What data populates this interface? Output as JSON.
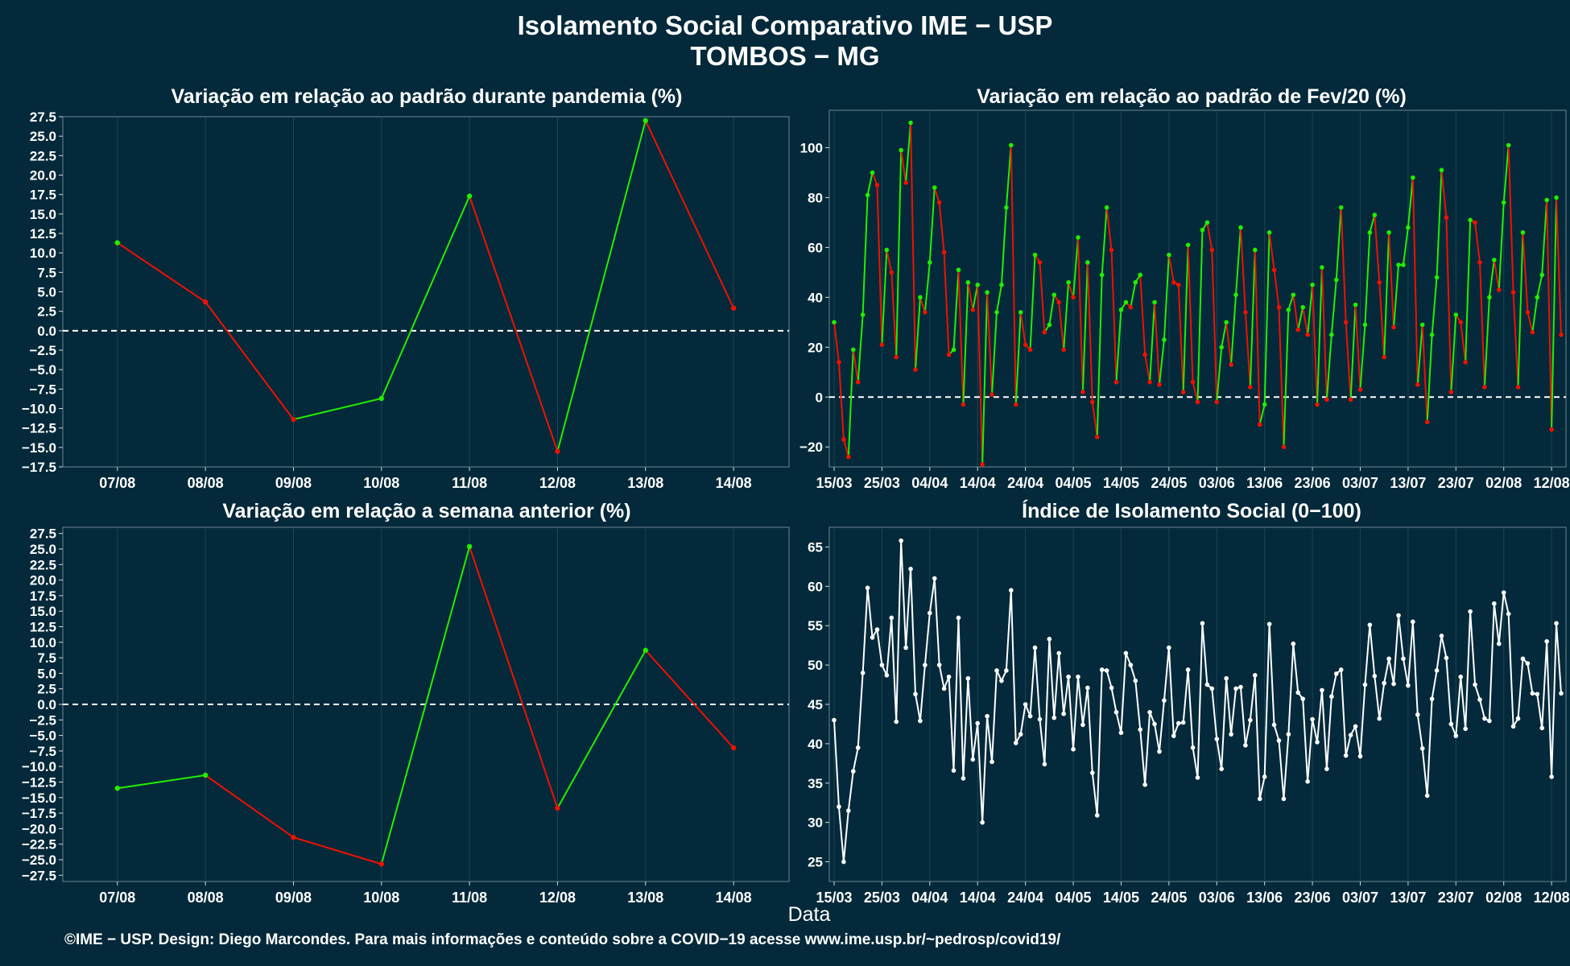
{
  "title_line1": "Isolamento Social Comparativo IME − USP",
  "title_line2": "TOMBOS − MG",
  "xlabel": "Data",
  "footer": "©IME − USP. Design: Diego Marcondes. Para mais informações e conteúdo sobre a COVID−19 acesse www.ime.usp.br/~pedrosp/covid19/",
  "colors": {
    "background": "#04293a",
    "increase": "#22ee00",
    "decrease": "#ee1100",
    "index_line": "#ffffff",
    "grid": "#1d4553",
    "text": "#ffffff"
  },
  "chart_data": [
    {
      "id": "pandemia",
      "type": "line",
      "title": "Variação em relação ao padrão durante pandemia (%)",
      "categories": [
        "07/08",
        "08/08",
        "09/08",
        "10/08",
        "11/08",
        "12/08",
        "13/08",
        "14/08"
      ],
      "values": [
        11.3,
        3.7,
        -11.4,
        -8.7,
        17.3,
        -15.5,
        27.0,
        2.9
      ],
      "ylim": [
        -17.5,
        27.5
      ],
      "yticks": [
        27.5,
        25.0,
        22.5,
        20.0,
        17.5,
        15.0,
        12.5,
        10.0,
        7.5,
        5.0,
        2.5,
        0.0,
        -2.5,
        -5.0,
        -7.5,
        -10.0,
        -12.5,
        -15.0,
        -17.5
      ],
      "reference_line": 0,
      "color_rule": "segment green if rising, red if falling",
      "grid": true
    },
    {
      "id": "fev20",
      "type": "line",
      "title": "Variação em relação ao padrão de Fev/20 (%)",
      "x_start": "15/03",
      "x_end": "14/08",
      "x_ticks": [
        "15/03",
        "25/03",
        "04/04",
        "14/04",
        "24/04",
        "04/05",
        "14/05",
        "24/05",
        "03/06",
        "13/06",
        "23/06",
        "03/07",
        "13/07",
        "23/07",
        "02/08",
        "12/08"
      ],
      "ylim": [
        -28,
        115
      ],
      "yticks": [
        100,
        80,
        60,
        40,
        20,
        0,
        -20
      ],
      "reference_line": 0,
      "color_rule": "segment green if rising, red if falling",
      "grid": true,
      "values": [
        30,
        14,
        -17,
        -24,
        19,
        6,
        33,
        81,
        90,
        85,
        21,
        59,
        50,
        16,
        99,
        86,
        110,
        11,
        40,
        34,
        54,
        84,
        78,
        58,
        17,
        19,
        51,
        -3,
        46,
        35,
        45,
        -27,
        42,
        1,
        34,
        45,
        76,
        101,
        -3,
        34,
        21,
        19,
        57,
        54,
        26,
        29,
        41,
        38,
        19,
        46,
        40,
        64,
        2,
        54,
        -2,
        -16,
        49,
        76,
        59,
        6,
        35,
        38,
        36,
        46,
        49,
        17,
        6,
        38,
        5,
        23,
        57,
        46,
        45,
        2,
        61,
        6,
        -2,
        67,
        70,
        59,
        -2,
        20,
        30,
        13,
        41,
        68,
        34,
        4,
        59,
        -11,
        -3,
        66,
        51,
        36,
        -20,
        35,
        41,
        27,
        36,
        25,
        45,
        -3,
        52,
        -1,
        25,
        47,
        76,
        30,
        -1,
        37,
        3,
        29,
        66,
        73,
        46,
        16,
        66,
        28,
        53,
        53,
        68,
        88,
        5,
        29,
        -10,
        25,
        48,
        91,
        72,
        2,
        33,
        30,
        14,
        71,
        70,
        54,
        4,
        40,
        55,
        43,
        78,
        101,
        42,
        4,
        66,
        34,
        26,
        40,
        49,
        79,
        -13,
        80,
        25
      ]
    },
    {
      "id": "semana",
      "type": "line",
      "title": "Variação em relação a semana anterior (%)",
      "categories": [
        "07/08",
        "08/08",
        "09/08",
        "10/08",
        "11/08",
        "12/08",
        "13/08",
        "14/08"
      ],
      "values": [
        -13.5,
        -11.4,
        -21.4,
        -25.7,
        25.4,
        -16.7,
        8.7,
        -7.0
      ],
      "ylim": [
        -28.5,
        28.5
      ],
      "yticks": [
        27.5,
        25.0,
        22.5,
        20.0,
        17.5,
        15.0,
        12.5,
        10.0,
        7.5,
        5.0,
        2.5,
        0.0,
        -2.5,
        -5.0,
        -7.5,
        -10.0,
        -12.5,
        -15.0,
        -17.5,
        -20.0,
        -22.5,
        -25.0,
        -27.5
      ],
      "reference_line": 0,
      "color_rule": "segment green if rising, red if falling",
      "grid": true
    },
    {
      "id": "indice",
      "type": "line",
      "title": "Índice de Isolamento Social (0−100)",
      "x_start": "15/03",
      "x_end": "14/08",
      "x_ticks": [
        "15/03",
        "25/03",
        "04/04",
        "14/04",
        "24/04",
        "04/05",
        "14/05",
        "24/05",
        "03/06",
        "13/06",
        "23/06",
        "03/07",
        "13/07",
        "23/07",
        "02/08",
        "12/08"
      ],
      "ylim": [
        22.5,
        67.5
      ],
      "yticks": [
        65,
        60,
        55,
        50,
        45,
        40,
        35,
        30,
        25
      ],
      "grid": true,
      "values": [
        43,
        32,
        25,
        31.5,
        36.5,
        39.5,
        49,
        59.8,
        53.5,
        54.5,
        50,
        48.7,
        56,
        42.8,
        65.8,
        52.2,
        62.2,
        46.3,
        42.9,
        50,
        56.6,
        61,
        50,
        47,
        48.5,
        36.6,
        56,
        35.6,
        48.3,
        38,
        42.6,
        30,
        43.5,
        37.7,
        49.3,
        48,
        49.3,
        59.5,
        40.1,
        41.2,
        45,
        43.5,
        52.2,
        43.1,
        37.4,
        53.3,
        43.3,
        51.5,
        43.8,
        48.5,
        39.3,
        48.5,
        42.4,
        47.1,
        36.3,
        30.9,
        49.4,
        49.3,
        47.1,
        44,
        41.4,
        51.5,
        50,
        48,
        41.8,
        34.8,
        44,
        42.5,
        39,
        45.5,
        52.2,
        41,
        42.6,
        42.7,
        49.4,
        39.5,
        35.7,
        55.3,
        47.5,
        47,
        40.6,
        36.8,
        48.3,
        41.2,
        47,
        47.2,
        39.8,
        43,
        48.7,
        33,
        35.8,
        55.2,
        42.4,
        40.4,
        33,
        41.2,
        52.7,
        46.5,
        45.7,
        35.2,
        43.1,
        40.2,
        46.8,
        36.8,
        46,
        48.9,
        49.4,
        38.5,
        41.1,
        42.2,
        38.4,
        47.5,
        55.1,
        48.6,
        43.2,
        47.7,
        50.8,
        47.6,
        56.3,
        50.8,
        47.4,
        55.5,
        43.7,
        39.4,
        33.4,
        45.7,
        49.3,
        53.7,
        50.9,
        42.5,
        41,
        48.5,
        41.9,
        56.8,
        47.5,
        45.6,
        43.2,
        42.9,
        57.8,
        52.7,
        59.2,
        56.5,
        42.2,
        43.2,
        50.8,
        50.2,
        46.4,
        46.3,
        42,
        53,
        35.8,
        55.3,
        46.4
      ]
    }
  ]
}
